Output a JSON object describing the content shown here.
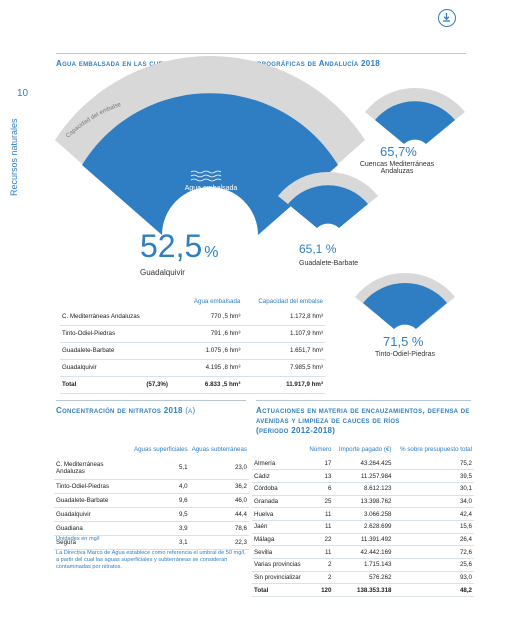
{
  "header": {
    "download_icon": "download-icon"
  },
  "page": {
    "number": "10",
    "section_label": "Recursos naturales"
  },
  "reservoir_section": {
    "title": "Agua embalsada en las cuencas y demarcaciones hidrográficas de Andalucía 2018",
    "arc_labels": {
      "capacity": "Capacidad del embalse",
      "stored": "Agua embalsada"
    },
    "main_value": "52,5",
    "main_unit": "%",
    "main_name": "Guadalquivir",
    "items": [
      {
        "value": "65,7%",
        "name": "Cuencas Mediterráneas Andaluzas",
        "fill": 0.657
      },
      {
        "value": "65,1 %",
        "name": "Guadalete-Barbate",
        "fill": 0.651
      },
      {
        "value": "71,5 %",
        "name": "Tinto-Odiel-Piedras",
        "fill": 0.715
      }
    ],
    "table": {
      "headers": [
        "Agua embalsada",
        "Capacidad del embalse"
      ],
      "rows": [
        {
          "name": "C. Mediterráneas Andaluzas",
          "pct": "",
          "stored": "770 ,5",
          "capacity": "1.172,8"
        },
        {
          "name": "Tinto-Odiel-Piedras",
          "pct": "",
          "stored": "791 ,6",
          "capacity": "1.107,9"
        },
        {
          "name": "Guadalete-Barbate",
          "pct": "",
          "stored": "1.075 ,6",
          "capacity": "1.651,7"
        },
        {
          "name": "Guadalquivir",
          "pct": "",
          "stored": "4.195 ,8",
          "capacity": "7.985,5"
        },
        {
          "name": "Total",
          "pct": "(57,3%)",
          "stored": "6.833 ,5",
          "capacity": "11.917,9"
        }
      ],
      "unit": "hm³"
    }
  },
  "nitrates_section": {
    "title": "Concentración de nitratos 2018",
    "ref": "(a)",
    "headers": [
      "Aguas superficiales",
      "Aguas subterráneas"
    ],
    "rows": [
      {
        "name": "C. Mediterráneas Andaluzas",
        "surface": "5,1",
        "ground": "23,0"
      },
      {
        "name": "Tinto-Odiel-Piedras",
        "surface": "4,0",
        "ground": "36,2"
      },
      {
        "name": "Guadalete-Barbate",
        "surface": "9,6",
        "ground": "46,0"
      },
      {
        "name": "Guadalquivir",
        "surface": "9,5",
        "ground": "44,4"
      },
      {
        "name": "Guadiana",
        "surface": "3,9",
        "ground": "78,6"
      },
      {
        "name": "Segura",
        "surface": "3,1",
        "ground": "22,3"
      }
    ],
    "units_note": "Unidades en mg/l",
    "footnote": "La Directiva Marco de Agua establece como referencia el umbral de 50 mg/l, a partir del cual las aguas superficiales y subterráneas se consideran contaminadas por nitratos."
  },
  "actions_section": {
    "title_line1": "Actuaciones en materia de encauzamientos, defensa de",
    "title_line2": "avenidas y limpieza de cauces de ríos",
    "title_line3": "(periodo 2012-2018)",
    "headers": [
      "Número",
      "Importe pagado (€)",
      "% sobre presupuesto total"
    ],
    "rows": [
      {
        "name": "Almería",
        "n": "17",
        "amount": "43.264.425",
        "pct": "75,2"
      },
      {
        "name": "Cádiz",
        "n": "13",
        "amount": "11.257.984",
        "pct": "39,5"
      },
      {
        "name": "Córdoba",
        "n": "6",
        "amount": "8.612.123",
        "pct": "30,1"
      },
      {
        "name": "Granada",
        "n": "25",
        "amount": "13.398.762",
        "pct": "34,0"
      },
      {
        "name": "Huelva",
        "n": "11",
        "amount": "3.066.258",
        "pct": "42,4"
      },
      {
        "name": "Jaén",
        "n": "11",
        "amount": "2.628.699",
        "pct": "15,6"
      },
      {
        "name": "Málaga",
        "n": "22",
        "amount": "11.391.492",
        "pct": "26,4"
      },
      {
        "name": "Sevilla",
        "n": "11",
        "amount": "42.442.169",
        "pct": "72,6"
      },
      {
        "name": "Varias provincias",
        "n": "2",
        "amount": "1.715.143",
        "pct": "25,6"
      },
      {
        "name": "Sin provincializar",
        "n": "2",
        "amount": "576.262",
        "pct": "93,0"
      },
      {
        "name": "Total",
        "n": "120",
        "amount": "138.353.318",
        "pct": "48,2"
      }
    ]
  }
}
